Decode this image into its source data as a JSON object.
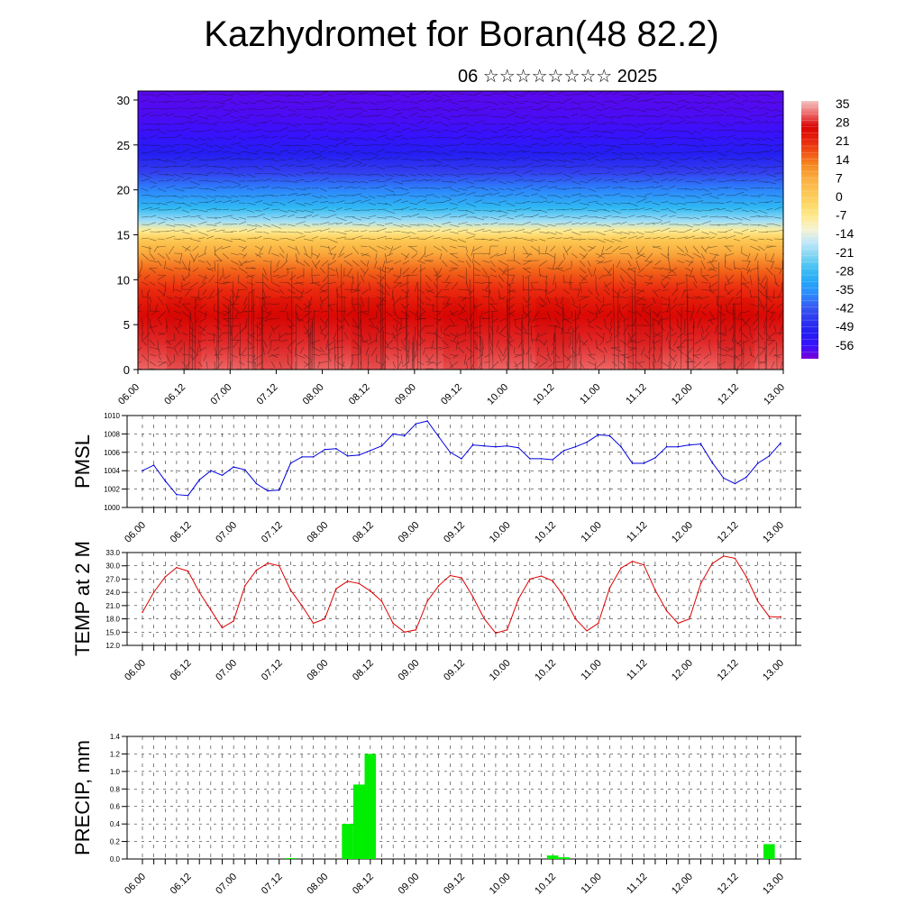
{
  "title": "Kazhydromet for Boran(48 82.2)",
  "subtitle": "06 ☆☆☆☆☆☆☆☆ 2025",
  "time_ticks": [
    "06.00",
    "06.12",
    "07.00",
    "07.12",
    "08.00",
    "08.12",
    "09.00",
    "09.12",
    "10.00",
    "10.12",
    "11.00",
    "11.12",
    "12.00",
    "12.12",
    "13.00"
  ],
  "colors": {
    "pmsl": "#0000dd",
    "temp": "#dd0000",
    "precip": "#00ee00"
  },
  "chart_data": [
    {
      "type": "heatmap",
      "title": "",
      "xlabel": "",
      "ylabel": "",
      "ylim": [
        0,
        31
      ],
      "yticks": [
        0,
        5,
        10,
        15,
        20,
        25,
        30
      ],
      "colorbar_labels": [
        "35",
        "28",
        "21",
        "14",
        "7",
        "0",
        "-7",
        "-14",
        "-21",
        "-28",
        "-35",
        "-42",
        "-49",
        "-56"
      ],
      "colorbar_range": [
        -60,
        38
      ],
      "overlay": "wind barbs and contour lines",
      "profile": {
        "height": [
          0,
          3,
          6,
          9,
          11,
          13,
          14.5,
          15.5,
          16.5,
          18,
          20,
          22,
          24,
          26,
          28,
          31
        ],
        "temperature": [
          33,
          30,
          27,
          22,
          17,
          9,
          2,
          -7,
          -18,
          -27,
          -36,
          -44,
          -50,
          -55,
          -57,
          -58
        ]
      }
    },
    {
      "type": "line",
      "ylabel": "PMSL",
      "ylim": [
        1000,
        1010
      ],
      "yticks": [
        "1000",
        "1002",
        "1004",
        "1006",
        "1008",
        "1010"
      ],
      "grid": true,
      "series": [
        {
          "values": [
            1004.0,
            1004.6,
            1002.9,
            1001.4,
            1001.3,
            1003.0,
            1004.0,
            1003.5,
            1004.4,
            1004.1,
            1002.6,
            1001.8,
            1001.9,
            1004.8,
            1005.5,
            1005.5,
            1006.3,
            1006.4,
            1005.6,
            1005.7,
            1006.2,
            1006.7,
            1008.0,
            1007.8,
            1009.1,
            1009.4,
            1007.7,
            1006.0,
            1005.3,
            1006.8,
            1006.7,
            1006.6,
            1006.7,
            1006.5,
            1005.3,
            1005.3,
            1005.2,
            1006.2,
            1006.6,
            1007.1,
            1007.9,
            1007.8,
            1006.6,
            1004.8,
            1004.8,
            1005.4,
            1006.6,
            1006.6,
            1006.8,
            1006.9,
            1004.9,
            1003.2,
            1002.6,
            1003.3,
            1004.8,
            1005.6,
            1007.0
          ]
        }
      ]
    },
    {
      "type": "line",
      "ylabel": "TEMP at 2 M",
      "ylim": [
        12,
        33
      ],
      "yticks": [
        "12.0",
        "15.0",
        "18.0",
        "21.0",
        "24.0",
        "27.0",
        "30.0",
        "33.0"
      ],
      "grid": true,
      "series": [
        {
          "values": [
            19.5,
            24.0,
            27.5,
            29.6,
            28.8,
            24.0,
            20.0,
            16.0,
            17.5,
            25.5,
            29.0,
            30.6,
            30.0,
            24.5,
            21.0,
            17.0,
            18.0,
            24.8,
            26.5,
            26.0,
            24.3,
            22.0,
            17.0,
            15.0,
            15.5,
            22.0,
            25.5,
            27.8,
            27.3,
            23.0,
            18.0,
            14.8,
            15.5,
            22.5,
            27.0,
            27.7,
            26.6,
            23.0,
            18.0,
            15.3,
            17.0,
            25.0,
            29.5,
            31.0,
            30.2,
            24.5,
            19.8,
            17.0,
            18.0,
            26.0,
            30.5,
            32.2,
            31.7,
            27.5,
            22.0,
            18.5,
            18.4
          ]
        }
      ]
    },
    {
      "type": "bar",
      "ylabel": "PRECIP, mm",
      "ylim": [
        0,
        1.4
      ],
      "yticks": [
        "0.0",
        "0.2",
        "0.4",
        "0.6",
        "0.8",
        "1.0",
        "1.2",
        "1.4"
      ],
      "grid": true,
      "bars": [
        {
          "t": 13.0,
          "value": 0.01
        },
        {
          "t": 18.0,
          "value": 0.4
        },
        {
          "t": 19.0,
          "value": 0.85
        },
        {
          "t": 20.0,
          "value": 1.2
        },
        {
          "t": 36.0,
          "value": 0.04
        },
        {
          "t": 37.0,
          "value": 0.02
        },
        {
          "t": 55.0,
          "value": 0.17
        }
      ]
    }
  ]
}
